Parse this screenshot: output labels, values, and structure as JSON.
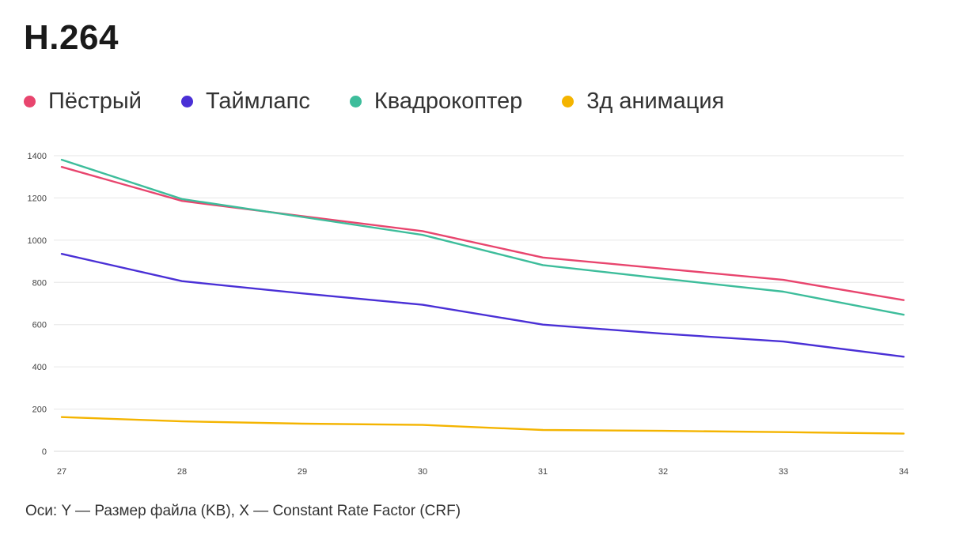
{
  "chart_data": {
    "type": "line",
    "title": "H.264",
    "x": [
      27,
      28,
      29,
      30,
      31,
      32,
      33,
      34
    ],
    "x_tick_labels": [
      "27",
      "28",
      "29",
      "30",
      "31",
      "32",
      "33",
      "34"
    ],
    "y_tick_labels": [
      "0",
      "200",
      "400",
      "600",
      "800",
      "1000",
      "1200",
      "1400"
    ],
    "ylim": [
      0,
      1400
    ],
    "grid": true,
    "legend_position": "top",
    "caption": "Оси: Y — Размер файла (KB), X — Constant Rate Factor (CRF)",
    "series": [
      {
        "name": "Пёстрый",
        "color": "#e8456e",
        "values": [
          1347,
          1186,
          1114,
          1043,
          918,
          865,
          812,
          716
        ]
      },
      {
        "name": "Таймлапс",
        "color": "#4a30d6",
        "values": [
          935,
          806,
          748,
          694,
          600,
          557,
          520,
          448
        ]
      },
      {
        "name": "Квадрокоптер",
        "color": "#3dbd9b",
        "values": [
          1381,
          1195,
          1110,
          1025,
          882,
          818,
          756,
          647
        ]
      },
      {
        "name": "3д анимация",
        "color": "#f4b400",
        "values": [
          162,
          142,
          131,
          125,
          101,
          97,
          91,
          84
        ]
      }
    ]
  }
}
